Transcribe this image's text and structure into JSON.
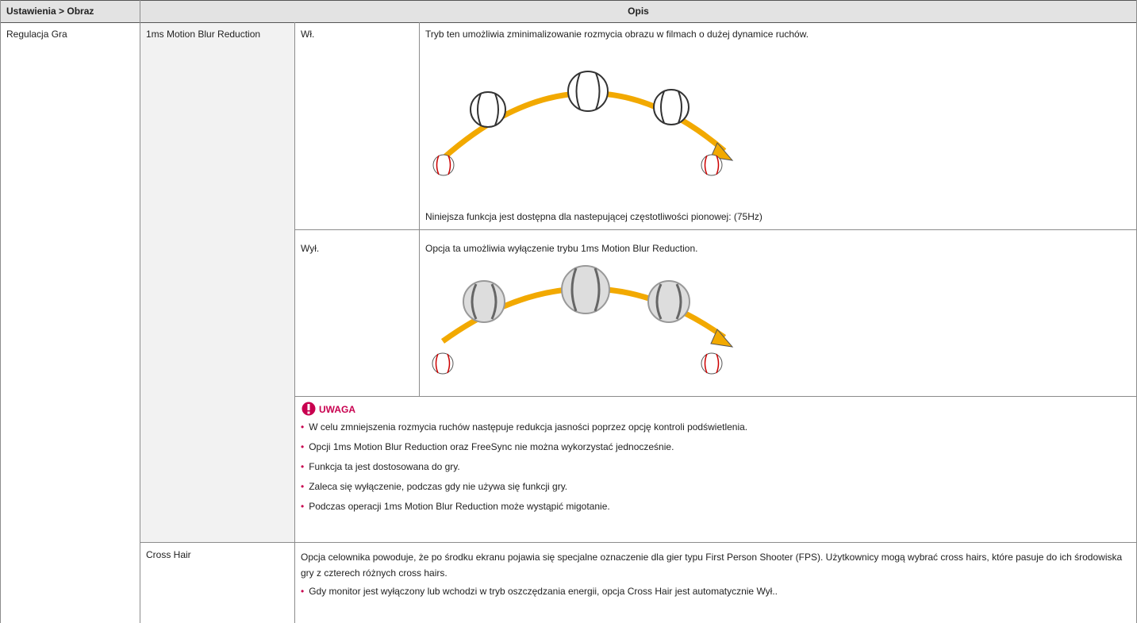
{
  "header": {
    "settings": "Ustawienia > Obraz",
    "description": "Opis"
  },
  "section": "Regulacja Gra",
  "items": [
    {
      "name": "1ms Motion Blur Reduction",
      "options": [
        {
          "label": "Wł.",
          "text": "Tryb ten umożliwia zminimalizowanie rozmycia obrazu w filmach o dużej dynamice ruchów.",
          "footnote": "Niniejsza funkcja jest dostępna dla nastepującej częstotliwości pionowej:  (75Hz)"
        },
        {
          "label": "Wył.",
          "text": "Opcja ta umożliwia wyłączenie trybu 1ms Motion Blur Reduction."
        }
      ],
      "note": {
        "title": "UWAGA",
        "bullets": [
          "W celu zmniejszenia rozmycia ruchów następuje redukcja jasności poprzez opcję kontroli podświetlenia.",
          "Opcji 1ms Motion Blur Reduction oraz FreeSync nie można wykorzystać jednocześnie.",
          "Funkcja ta jest dostosowana do gry.",
          "Zaleca się wyłączenie, podczas gdy nie używa się funkcji gry.",
          "Podczas operacji 1ms Motion Blur Reduction może wystąpić migotanie."
        ]
      }
    },
    {
      "name": "Cross Hair",
      "text": "Opcja celownika powoduje, że po środku ekranu pojawia się specjalne oznaczenie dla gier typu First Person Shooter (FPS). Użytkownicy mogą wybrać cross hairs, które pasuje do ich środowiska gry z czterech różnych cross hairs.",
      "bullets": [
        "Gdy monitor jest wyłączony lub wchodzi w tryb oszczędzania energii, opcja Cross Hair jest automatycznie Wył.."
      ]
    }
  ]
}
